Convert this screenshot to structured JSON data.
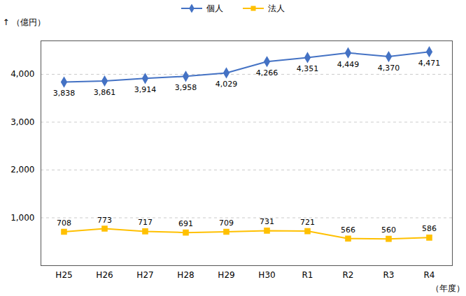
{
  "chart_data": {
    "type": "line",
    "categories": [
      "H25",
      "H26",
      "H27",
      "H28",
      "H29",
      "H30",
      "R1",
      "R2",
      "R3",
      "R4"
    ],
    "series": [
      {
        "name": "個人",
        "color": "#4472C4",
        "marker": "diamond",
        "values": [
          3838,
          3861,
          3914,
          3958,
          4029,
          4266,
          4351,
          4449,
          4370,
          4471
        ],
        "value_labels": [
          "3,838",
          "3,861",
          "3,914",
          "3,958",
          "4,029",
          "4,266",
          "4,351",
          "4,449",
          "4,370",
          "4,471"
        ]
      },
      {
        "name": "法人",
        "color": "#FFC000",
        "marker": "square",
        "values": [
          708,
          773,
          717,
          691,
          709,
          731,
          721,
          566,
          560,
          586
        ],
        "value_labels": [
          "708",
          "773",
          "717",
          "691",
          "709",
          "731",
          "721",
          "566",
          "560",
          "586"
        ]
      }
    ],
    "xlabel": "（年度）",
    "ylabel": "（億円）",
    "ylim": [
      0,
      4700
    ],
    "yticks": [
      {
        "value": 1000,
        "label": "1,000"
      },
      {
        "value": 2000,
        "label": "2,000"
      },
      {
        "value": 3000,
        "label": "3,000"
      },
      {
        "value": 4000,
        "label": "4,000"
      }
    ],
    "grid": true,
    "legend": "top",
    "data_labels": true
  }
}
